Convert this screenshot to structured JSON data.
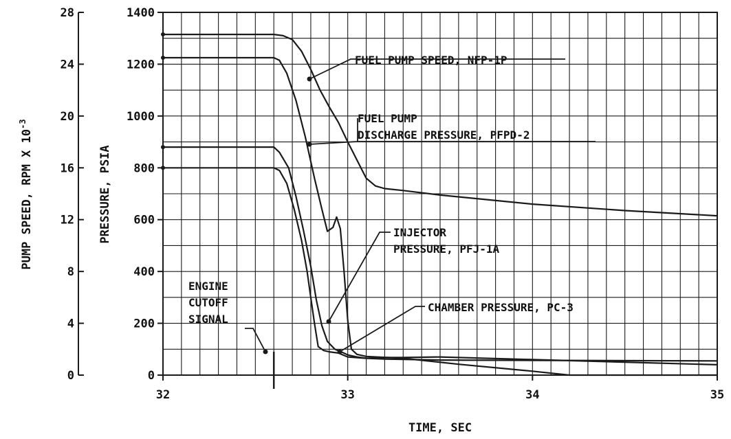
{
  "chart_data": {
    "type": "line",
    "title": "",
    "xlabel": "TIME, SEC",
    "ylabel_left": "PUMP SPEED, RPM X 10",
    "ylabel_left_exponent": "-3",
    "ylabel_right": "PRESSURE, PSIA",
    "xlim": [
      32,
      35
    ],
    "ylim_pressure": [
      0,
      1400
    ],
    "ylim_speed": [
      0,
      28
    ],
    "grid": true,
    "x_ticks": [
      "32",
      "33",
      "34",
      "35"
    ],
    "x_tick_values": [
      32,
      33,
      34,
      35
    ],
    "pressure_ticks": [
      "0",
      "200",
      "400",
      "600",
      "800",
      "1000",
      "1200",
      "1400"
    ],
    "pressure_tick_values": [
      0,
      200,
      400,
      600,
      800,
      1000,
      1200,
      1400
    ],
    "speed_ticks": [
      "0",
      "4",
      "8",
      "12",
      "16",
      "20",
      "24",
      "28"
    ],
    "speed_tick_values": [
      0,
      4,
      8,
      12,
      16,
      20,
      24,
      28
    ],
    "series": [
      {
        "name": "FUEL PUMP SPEED, NFP-1P",
        "unit": "rpm x 10^-3",
        "x": [
          32.0,
          32.3,
          32.6,
          32.65,
          32.7,
          32.75,
          32.8,
          32.85,
          32.9,
          32.95,
          33.0,
          33.05,
          33.1,
          33.15,
          33.2,
          33.3,
          33.5,
          34.0,
          34.5,
          35.0
        ],
        "y": [
          26.3,
          26.3,
          26.3,
          26.2,
          25.9,
          25.0,
          23.6,
          22.0,
          20.7,
          19.5,
          18.0,
          16.6,
          15.2,
          14.6,
          14.4,
          14.25,
          13.9,
          13.2,
          12.7,
          12.3
        ]
      },
      {
        "name": "FUEL PUMP DISCHARGE PRESSURE, PFPD-2",
        "unit": "psia",
        "x": [
          32.0,
          32.3,
          32.6,
          32.63,
          32.67,
          32.72,
          32.77,
          32.82,
          32.86,
          32.89,
          32.92,
          32.94,
          32.96,
          32.98,
          33.0,
          33.02,
          33.05,
          33.1,
          33.3,
          33.6,
          34.0,
          34.2,
          35.0
        ],
        "y": [
          1225,
          1225,
          1225,
          1215,
          1165,
          1060,
          920,
          760,
          640,
          555,
          570,
          610,
          565,
          400,
          210,
          100,
          80,
          72,
          65,
          42,
          15,
          0,
          0
        ]
      },
      {
        "name": "INJECTOR PRESSURE, PFJ-1A",
        "unit": "psia",
        "x": [
          32.0,
          32.3,
          32.6,
          32.63,
          32.68,
          32.72,
          32.76,
          32.8,
          32.83,
          32.86,
          32.89,
          32.93,
          32.97,
          33.0,
          33.05,
          33.1,
          33.2,
          33.5,
          35.0
        ],
        "y": [
          880,
          880,
          880,
          860,
          800,
          690,
          560,
          420,
          290,
          190,
          130,
          100,
          88,
          78,
          70,
          65,
          62,
          58,
          55
        ]
      },
      {
        "name": "CHAMBER PRESSURE, PC-3",
        "unit": "psia",
        "x": [
          32.0,
          32.3,
          32.6,
          32.63,
          32.67,
          32.71,
          32.75,
          32.78,
          32.8,
          32.82,
          32.84,
          32.87,
          32.9,
          32.95,
          33.0,
          33.1,
          33.2,
          33.3,
          33.5,
          34.0,
          35.0
        ],
        "y": [
          800,
          800,
          800,
          790,
          740,
          640,
          520,
          400,
          300,
          200,
          110,
          95,
          90,
          85,
          70,
          65,
          68,
          68,
          70,
          60,
          40
        ]
      }
    ],
    "annotations": [
      {
        "id": "nfp",
        "lines": [
          "FUEL PUMP SPEED, NFP-1P"
        ]
      },
      {
        "id": "pfpd",
        "lines": [
          "FUEL PUMP",
          "DISCHARGE PRESSURE, PFPD-2"
        ]
      },
      {
        "id": "pfj",
        "lines": [
          "INJECTOR",
          "PRESSURE, PFJ-1A"
        ]
      },
      {
        "id": "pc",
        "lines": [
          "CHAMBER PRESSURE, PC-3"
        ]
      },
      {
        "id": "cutoff",
        "lines": [
          "ENGINE",
          "CUTOFF",
          "SIGNAL"
        ]
      }
    ],
    "cutoff_signal_time": 32.6,
    "line_color": "#1a1a1a",
    "grid_color": "#1a1a1a"
  }
}
